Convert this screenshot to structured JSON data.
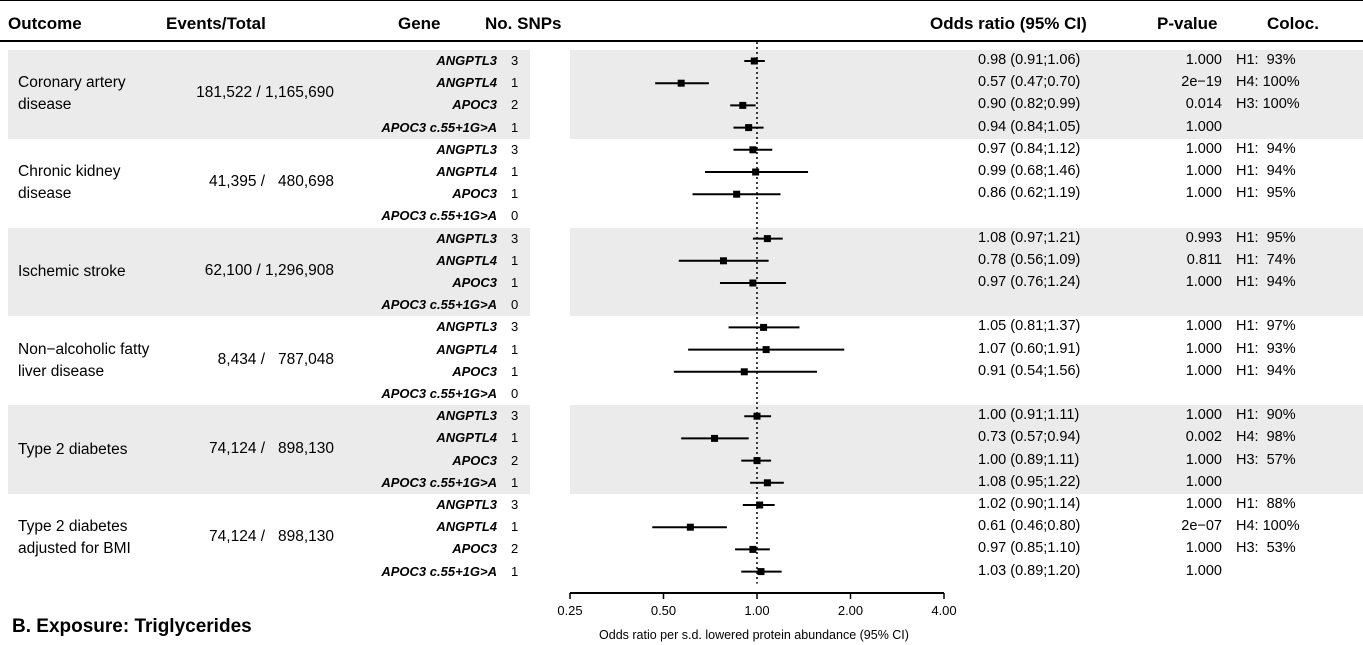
{
  "headers": {
    "outcome": "Outcome",
    "events_total": "Events/Total",
    "gene": "Gene",
    "no_snps": "No. SNPs",
    "odds_ratio": "Odds ratio (95% CI)",
    "p_value": "P-value",
    "coloc": "Coloc."
  },
  "bottom_section_title": "B. Exposure: Triglycerides",
  "chart_data": {
    "type": "forest",
    "xlabel": "Odds ratio per s.d. lowered protein abundance (95% CI)",
    "x_scale": "log",
    "xlim": [
      0.25,
      4.0
    ],
    "x_ticks": [
      0.25,
      0.5,
      1.0,
      2.0,
      4.0
    ],
    "x_tick_labels": [
      "0.25",
      "0.50",
      "1.00",
      "2.00",
      "4.00"
    ],
    "reference_line": 1.0,
    "groups": [
      {
        "outcome_lines": [
          "Coronary artery",
          "disease"
        ],
        "events_total": "181,522 / 1,165,690",
        "rows": [
          {
            "gene": "ANGPTL3",
            "n_snps": "3",
            "or": 0.98,
            "lo": 0.91,
            "hi": 1.06,
            "or_text": "0.98 (0.91;1.06)",
            "p": "1.000",
            "coloc": "H1:  93%"
          },
          {
            "gene": "ANGPTL4",
            "n_snps": "1",
            "or": 0.57,
            "lo": 0.47,
            "hi": 0.7,
            "or_text": "0.57 (0.47;0.70)",
            "p": "2e−19",
            "coloc": "H4: 100%"
          },
          {
            "gene": "APOC3",
            "n_snps": "2",
            "or": 0.9,
            "lo": 0.82,
            "hi": 0.99,
            "or_text": "0.90 (0.82;0.99)",
            "p": "0.014",
            "coloc": "H3: 100%"
          },
          {
            "gene": "APOC3 c.55+1G>A",
            "n_snps": "1",
            "or": 0.94,
            "lo": 0.84,
            "hi": 1.05,
            "or_text": "0.94 (0.84;1.05)",
            "p": "1.000",
            "coloc": ""
          }
        ]
      },
      {
        "outcome_lines": [
          "Chronic kidney",
          "disease"
        ],
        "events_total": " 41,395 /   480,698",
        "rows": [
          {
            "gene": "ANGPTL3",
            "n_snps": "3",
            "or": 0.97,
            "lo": 0.84,
            "hi": 1.12,
            "or_text": "0.97 (0.84;1.12)",
            "p": "1.000",
            "coloc": "H1:  94%"
          },
          {
            "gene": "ANGPTL4",
            "n_snps": "1",
            "or": 0.99,
            "lo": 0.68,
            "hi": 1.46,
            "or_text": "0.99 (0.68;1.46)",
            "p": "1.000",
            "coloc": "H1:  94%"
          },
          {
            "gene": "APOC3",
            "n_snps": "1",
            "or": 0.86,
            "lo": 0.62,
            "hi": 1.19,
            "or_text": "0.86 (0.62;1.19)",
            "p": "1.000",
            "coloc": "H1:  95%"
          },
          {
            "gene": "APOC3 c.55+1G>A",
            "n_snps": "0",
            "or": null,
            "lo": null,
            "hi": null,
            "or_text": "",
            "p": "",
            "coloc": ""
          }
        ]
      },
      {
        "outcome_lines": [
          "Ischemic stroke"
        ],
        "events_total": " 62,100 / 1,296,908",
        "rows": [
          {
            "gene": "ANGPTL3",
            "n_snps": "3",
            "or": 1.08,
            "lo": 0.97,
            "hi": 1.21,
            "or_text": "1.08 (0.97;1.21)",
            "p": "0.993",
            "coloc": "H1:  95%"
          },
          {
            "gene": "ANGPTL4",
            "n_snps": "1",
            "or": 0.78,
            "lo": 0.56,
            "hi": 1.09,
            "or_text": "0.78 (0.56;1.09)",
            "p": "0.811",
            "coloc": "H1:  74%"
          },
          {
            "gene": "APOC3",
            "n_snps": "1",
            "or": 0.97,
            "lo": 0.76,
            "hi": 1.24,
            "or_text": "0.97 (0.76;1.24)",
            "p": "1.000",
            "coloc": "H1:  94%"
          },
          {
            "gene": "APOC3 c.55+1G>A",
            "n_snps": "0",
            "or": null,
            "lo": null,
            "hi": null,
            "or_text": "",
            "p": "",
            "coloc": ""
          }
        ]
      },
      {
        "outcome_lines": [
          "Non−alcoholic fatty",
          "liver disease"
        ],
        "events_total": "  8,434 /   787,048",
        "rows": [
          {
            "gene": "ANGPTL3",
            "n_snps": "3",
            "or": 1.05,
            "lo": 0.81,
            "hi": 1.37,
            "or_text": "1.05 (0.81;1.37)",
            "p": "1.000",
            "coloc": "H1:  97%"
          },
          {
            "gene": "ANGPTL4",
            "n_snps": "1",
            "or": 1.07,
            "lo": 0.6,
            "hi": 1.91,
            "or_text": "1.07 (0.60;1.91)",
            "p": "1.000",
            "coloc": "H1:  93%"
          },
          {
            "gene": "APOC3",
            "n_snps": "1",
            "or": 0.91,
            "lo": 0.54,
            "hi": 1.56,
            "or_text": "0.91 (0.54;1.56)",
            "p": "1.000",
            "coloc": "H1:  94%"
          },
          {
            "gene": "APOC3 c.55+1G>A",
            "n_snps": "0",
            "or": null,
            "lo": null,
            "hi": null,
            "or_text": "",
            "p": "",
            "coloc": ""
          }
        ]
      },
      {
        "outcome_lines": [
          "Type 2 diabetes"
        ],
        "events_total": " 74,124 /   898,130",
        "rows": [
          {
            "gene": "ANGPTL3",
            "n_snps": "3",
            "or": 1.0,
            "lo": 0.91,
            "hi": 1.11,
            "or_text": "1.00 (0.91;1.11)",
            "p": "1.000",
            "coloc": "H1:  90%"
          },
          {
            "gene": "ANGPTL4",
            "n_snps": "1",
            "or": 0.73,
            "lo": 0.57,
            "hi": 0.94,
            "or_text": "0.73 (0.57;0.94)",
            "p": "0.002",
            "coloc": "H4:  98%"
          },
          {
            "gene": "APOC3",
            "n_snps": "2",
            "or": 1.0,
            "lo": 0.89,
            "hi": 1.11,
            "or_text": "1.00 (0.89;1.11)",
            "p": "1.000",
            "coloc": "H3:  57%"
          },
          {
            "gene": "APOC3 c.55+1G>A",
            "n_snps": "1",
            "or": 1.08,
            "lo": 0.95,
            "hi": 1.22,
            "or_text": "1.08 (0.95;1.22)",
            "p": "1.000",
            "coloc": ""
          }
        ]
      },
      {
        "outcome_lines": [
          "Type 2 diabetes",
          "adjusted for BMI"
        ],
        "events_total": " 74,124 /   898,130",
        "rows": [
          {
            "gene": "ANGPTL3",
            "n_snps": "3",
            "or": 1.02,
            "lo": 0.9,
            "hi": 1.14,
            "or_text": "1.02 (0.90;1.14)",
            "p": "1.000",
            "coloc": "H1:  88%"
          },
          {
            "gene": "ANGPTL4",
            "n_snps": "1",
            "or": 0.61,
            "lo": 0.46,
            "hi": 0.8,
            "or_text": "0.61 (0.46;0.80)",
            "p": "2e−07",
            "coloc": "H4: 100%"
          },
          {
            "gene": "APOC3",
            "n_snps": "2",
            "or": 0.97,
            "lo": 0.85,
            "hi": 1.1,
            "or_text": "0.97 (0.85;1.10)",
            "p": "1.000",
            "coloc": "H3:  53%"
          },
          {
            "gene": "APOC3 c.55+1G>A",
            "n_snps": "1",
            "or": 1.03,
            "lo": 0.89,
            "hi": 1.2,
            "or_text": "1.03 (0.89;1.20)",
            "p": "1.000",
            "coloc": ""
          }
        ]
      }
    ]
  }
}
